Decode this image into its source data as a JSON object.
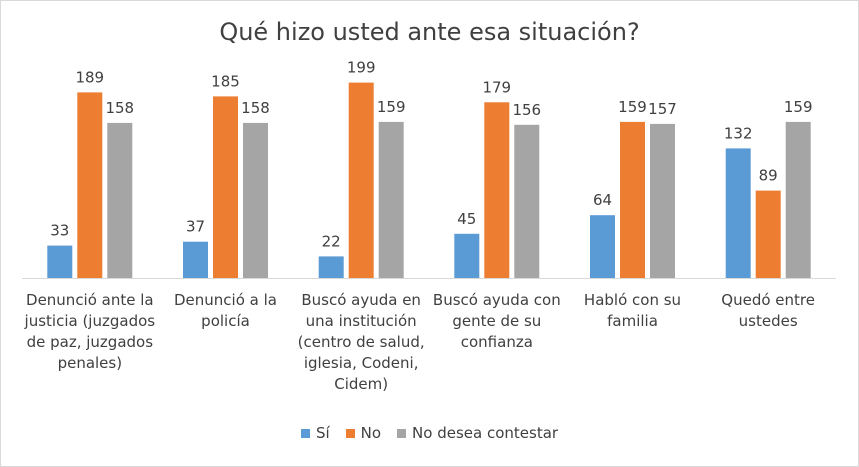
{
  "chart_data": {
    "type": "bar",
    "title": "Qué hizo usted ante esa situación?",
    "xlabel": "",
    "ylabel": "",
    "ylim": [
      0,
      220
    ],
    "grid": false,
    "legend_position": "bottom",
    "categories": [
      "Denunció ante la\njusticia (juzgados\nde paz, juzgados\npenales)",
      "Denunció a la\npolicía",
      "Buscó ayuda en\nuna institución\n(centro de salud,\niglesia, Codeni,\nCidem)",
      "Buscó ayuda con\ngente de su\nconfianza",
      "Habló con su\nfamilia",
      "Quedó entre\nustedes"
    ],
    "series": [
      {
        "name": "Sí",
        "color": "#5b9bd5",
        "values": [
          33,
          37,
          22,
          45,
          64,
          132
        ]
      },
      {
        "name": "No",
        "color": "#ed7d31",
        "values": [
          189,
          185,
          199,
          179,
          159,
          89
        ]
      },
      {
        "name": "No desea contestar",
        "color": "#a5a5a5",
        "values": [
          158,
          158,
          159,
          156,
          157,
          159
        ]
      }
    ]
  }
}
